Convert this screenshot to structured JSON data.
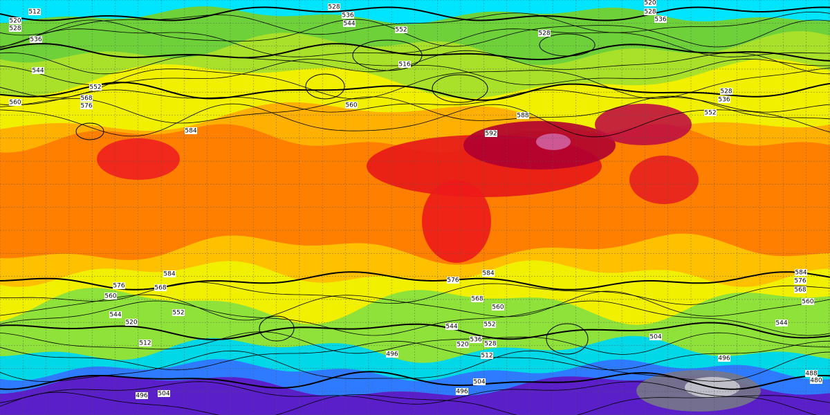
{
  "contour_labels": [
    "512",
    "520",
    "528",
    "536",
    "544",
    "552",
    "560",
    "568",
    "576",
    "528",
    "536",
    "544",
    "552",
    "516",
    "560",
    "528",
    "520",
    "528",
    "536",
    "528",
    "536",
    "552",
    "584",
    "592",
    "588",
    "584",
    "576",
    "568",
    "560",
    "552",
    "520",
    "544",
    "512",
    "496",
    "504",
    "496",
    "504",
    "496",
    "568",
    "560",
    "552",
    "544",
    "536",
    "528",
    "520",
    "512",
    "576",
    "584",
    "504",
    "584",
    "576",
    "568",
    "560",
    "544",
    "488",
    "480",
    "496"
  ]
}
